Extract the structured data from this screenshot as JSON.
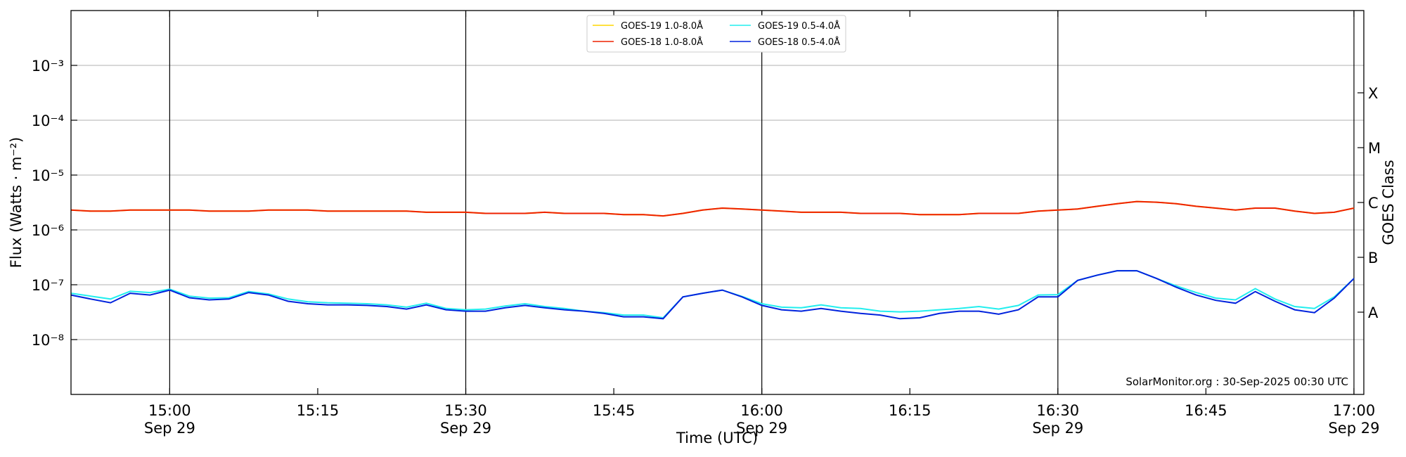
{
  "chart_data": {
    "type": "line",
    "xlabel": "Time (UTC)",
    "ylabel": "Flux (Watts · m⁻²)",
    "y2label": "GOES Class",
    "footer": "SolarMonitor.org : 30-Sep-2025 00:30 UTC",
    "log_y": true,
    "grid": true,
    "legend": "upper center",
    "xlim": [
      "14:50",
      "17:01"
    ],
    "xticks": [
      {
        "value": "15:00",
        "label": "15:00\nSep 29"
      },
      "15:15",
      {
        "value": "15:30",
        "label": "15:30\nSep 29"
      },
      "15:45",
      {
        "value": "16:00",
        "label": "16:00\nSep 29"
      },
      "16:15",
      {
        "value": "16:30",
        "label": "16:30\nSep 29"
      },
      "16:45",
      {
        "value": "17:00",
        "label": "17:00\nSep 29"
      }
    ],
    "vlines": [
      "15:00",
      "15:30",
      "16:00",
      "16:30",
      "17:00"
    ],
    "ylim": [
      1e-09,
      0.01
    ],
    "yticks": [
      {
        "value": 1e-08,
        "label": "10⁻⁸"
      },
      {
        "value": 1e-07,
        "label": "10⁻⁷"
      },
      {
        "value": 1e-06,
        "label": "10⁻⁶"
      },
      {
        "value": 1e-05,
        "label": "10⁻⁵"
      },
      {
        "value": 0.0001,
        "label": "10⁻⁴"
      },
      {
        "value": 0.001,
        "label": "10⁻³"
      }
    ],
    "y2ticks": [
      {
        "value": 3.162e-08,
        "label": "A"
      },
      {
        "value": 3.162e-07,
        "label": "B"
      },
      {
        "value": 3.162e-06,
        "label": "C"
      },
      {
        "value": 3.162e-05,
        "label": "M"
      },
      {
        "value": 0.0003162,
        "label": "X"
      }
    ],
    "x": [
      "14:50",
      "14:52",
      "14:54",
      "14:56",
      "14:58",
      "15:00",
      "15:02",
      "15:04",
      "15:06",
      "15:08",
      "15:10",
      "15:12",
      "15:14",
      "15:16",
      "15:18",
      "15:20",
      "15:22",
      "15:24",
      "15:26",
      "15:28",
      "15:30",
      "15:32",
      "15:34",
      "15:36",
      "15:38",
      "15:40",
      "15:42",
      "15:44",
      "15:46",
      "15:48",
      "15:50",
      "15:52",
      "15:54",
      "15:56",
      "15:58",
      "16:00",
      "16:02",
      "16:04",
      "16:06",
      "16:08",
      "16:10",
      "16:12",
      "16:14",
      "16:16",
      "16:18",
      "16:20",
      "16:22",
      "16:24",
      "16:26",
      "16:28",
      "16:30",
      "16:32",
      "16:34",
      "16:36",
      "16:38",
      "16:40",
      "16:42",
      "16:44",
      "16:46",
      "16:48",
      "16:50",
      "16:52",
      "16:54",
      "16:56",
      "16:58",
      "17:00"
    ],
    "series": [
      {
        "name": "GOES-19 1.0-8.0Å",
        "color": "#ffd700",
        "values": [
          2.3e-06,
          2.2e-06,
          2.2e-06,
          2.3e-06,
          2.3e-06,
          2.3e-06,
          2.3e-06,
          2.2e-06,
          2.2e-06,
          2.2e-06,
          2.3e-06,
          2.3e-06,
          2.3e-06,
          2.2e-06,
          2.2e-06,
          2.2e-06,
          2.2e-06,
          2.2e-06,
          2.1e-06,
          2.1e-06,
          2.1e-06,
          2e-06,
          2e-06,
          2e-06,
          2.1e-06,
          2e-06,
          2e-06,
          2e-06,
          1.9e-06,
          1.9e-06,
          1.8e-06,
          2e-06,
          2.3e-06,
          2.5e-06,
          2.4e-06,
          2.3e-06,
          2.2e-06,
          2.1e-06,
          2.1e-06,
          2.1e-06,
          2e-06,
          2e-06,
          2e-06,
          1.9e-06,
          1.9e-06,
          1.9e-06,
          2e-06,
          2e-06,
          2e-06,
          2.2e-06,
          2.3e-06,
          2.4e-06,
          2.7e-06,
          3e-06,
          3.3e-06,
          3.2e-06,
          3e-06,
          2.7e-06,
          2.5e-06,
          2.3e-06,
          2.5e-06,
          2.5e-06,
          2.2e-06,
          2e-06,
          2.1e-06,
          2.5e-06
        ]
      },
      {
        "name": "GOES-18 1.0-8.0Å",
        "color": "#ee2200",
        "values": [
          2.3e-06,
          2.2e-06,
          2.2e-06,
          2.3e-06,
          2.3e-06,
          2.3e-06,
          2.3e-06,
          2.2e-06,
          2.2e-06,
          2.2e-06,
          2.3e-06,
          2.3e-06,
          2.3e-06,
          2.2e-06,
          2.2e-06,
          2.2e-06,
          2.2e-06,
          2.2e-06,
          2.1e-06,
          2.1e-06,
          2.1e-06,
          2e-06,
          2e-06,
          2e-06,
          2.1e-06,
          2e-06,
          2e-06,
          2e-06,
          1.9e-06,
          1.9e-06,
          1.8e-06,
          2e-06,
          2.3e-06,
          2.5e-06,
          2.4e-06,
          2.3e-06,
          2.2e-06,
          2.1e-06,
          2.1e-06,
          2.1e-06,
          2e-06,
          2e-06,
          2e-06,
          1.9e-06,
          1.9e-06,
          1.9e-06,
          2e-06,
          2e-06,
          2e-06,
          2.2e-06,
          2.3e-06,
          2.4e-06,
          2.7e-06,
          3e-06,
          3.3e-06,
          3.2e-06,
          3e-06,
          2.7e-06,
          2.5e-06,
          2.3e-06,
          2.5e-06,
          2.5e-06,
          2.2e-06,
          2e-06,
          2.1e-06,
          2.5e-06
        ]
      },
      {
        "name": "GOES-19 0.5-4.0Å",
        "color": "#22eeee",
        "values": [
          7e-08,
          6.2e-08,
          5.5e-08,
          7.6e-08,
          7.2e-08,
          8.3e-08,
          6.2e-08,
          5.7e-08,
          5.8e-08,
          7.5e-08,
          6.8e-08,
          5.5e-08,
          4.9e-08,
          4.7e-08,
          4.6e-08,
          4.5e-08,
          4.3e-08,
          3.9e-08,
          4.6e-08,
          3.7e-08,
          3.5e-08,
          3.6e-08,
          4.1e-08,
          4.5e-08,
          4e-08,
          3.7e-08,
          3.3e-08,
          3.1e-08,
          2.8e-08,
          2.8e-08,
          2.5e-08,
          6e-08,
          7e-08,
          8e-08,
          6.1e-08,
          4.5e-08,
          3.9e-08,
          3.8e-08,
          4.3e-08,
          3.8e-08,
          3.7e-08,
          3.3e-08,
          3.2e-08,
          3.3e-08,
          3.5e-08,
          3.7e-08,
          4e-08,
          3.6e-08,
          4.2e-08,
          6.5e-08,
          6.6e-08,
          1.2e-07,
          1.5e-07,
          1.8e-07,
          1.8e-07,
          1.3e-07,
          9.5e-08,
          7.2e-08,
          5.7e-08,
          5.3e-08,
          8.5e-08,
          5.5e-08,
          4e-08,
          3.7e-08,
          6e-08,
          1.3e-07
        ]
      },
      {
        "name": "GOES-18 0.5-4.0Å",
        "color": "#0022dd",
        "values": [
          6.5e-08,
          5.5e-08,
          4.7e-08,
          7e-08,
          6.5e-08,
          8e-08,
          5.8e-08,
          5.3e-08,
          5.5e-08,
          7.2e-08,
          6.5e-08,
          5e-08,
          4.5e-08,
          4.3e-08,
          4.3e-08,
          4.2e-08,
          4e-08,
          3.6e-08,
          4.3e-08,
          3.5e-08,
          3.3e-08,
          3.3e-08,
          3.8e-08,
          4.2e-08,
          3.8e-08,
          3.5e-08,
          3.3e-08,
          3e-08,
          2.6e-08,
          2.6e-08,
          2.4e-08,
          6e-08,
          7e-08,
          8e-08,
          6e-08,
          4.2e-08,
          3.5e-08,
          3.3e-08,
          3.7e-08,
          3.3e-08,
          3e-08,
          2.8e-08,
          2.4e-08,
          2.5e-08,
          3e-08,
          3.3e-08,
          3.3e-08,
          2.9e-08,
          3.5e-08,
          6e-08,
          6e-08,
          1.2e-07,
          1.5e-07,
          1.8e-07,
          1.8e-07,
          1.3e-07,
          9e-08,
          6.5e-08,
          5.2e-08,
          4.6e-08,
          7.5e-08,
          5e-08,
          3.5e-08,
          3.1e-08,
          5.7e-08,
          1.3e-07
        ]
      }
    ]
  }
}
